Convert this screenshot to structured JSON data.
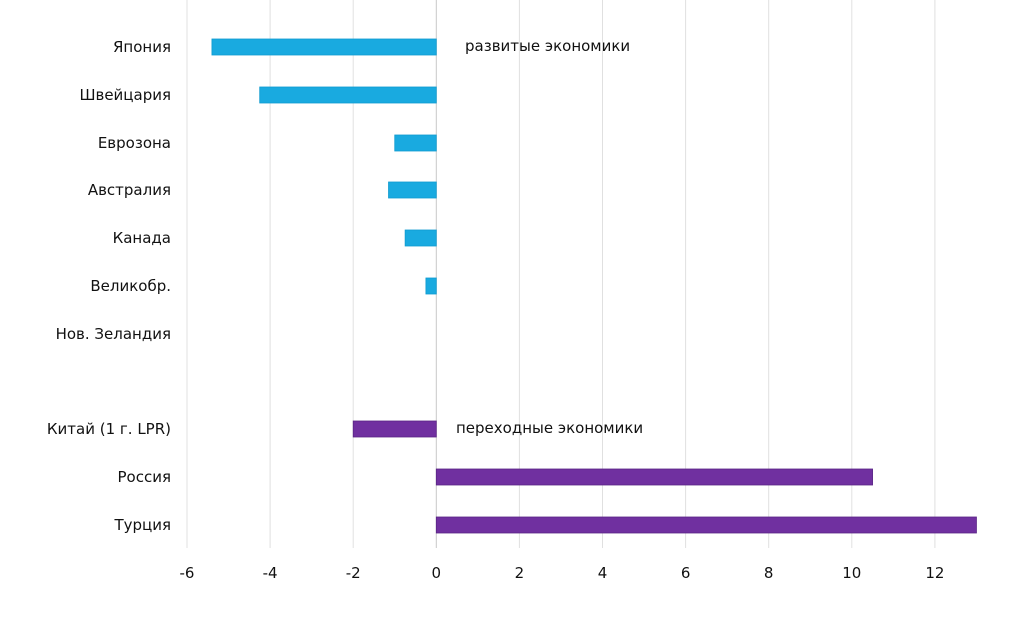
{
  "chart_data": {
    "type": "bar",
    "orientation": "horizontal",
    "title": "",
    "xlabel": "",
    "ylabel": "",
    "xlim": [
      -6,
      13
    ],
    "xticks": [
      -6,
      -4,
      -2,
      0,
      2,
      4,
      6,
      8,
      10,
      12
    ],
    "grid": true,
    "groups": [
      {
        "name": "развитые экономики",
        "color": "#19aae0",
        "categories": [
          "Япония",
          "Швейцария",
          "Еврозона",
          "Австралия",
          "Канада",
          "Великобр.",
          "Нов. Зеландия"
        ],
        "values": [
          -5.4,
          -4.25,
          -1.0,
          -1.15,
          -0.75,
          -0.25,
          0
        ]
      },
      {
        "name": "переходные экономики",
        "color": "#7030a0",
        "categories": [
          "Китай (1 г. LPR)",
          "Россия",
          "Турция"
        ],
        "values": [
          -2.0,
          10.5,
          13.0
        ]
      }
    ]
  }
}
